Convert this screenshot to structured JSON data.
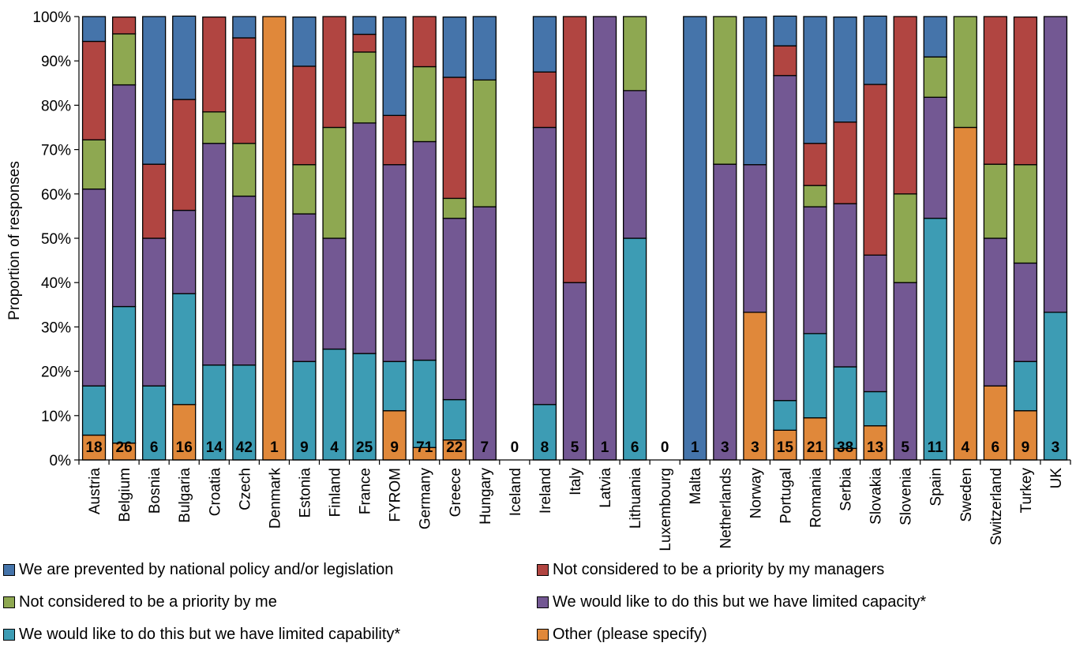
{
  "chart_data": {
    "type": "bar",
    "stacked": true,
    "normalized": true,
    "title": "",
    "xlabel": "",
    "ylabel": "Proportion of responses",
    "ylim": [
      0,
      100
    ],
    "yticks": [
      "0%",
      "10%",
      "20%",
      "30%",
      "40%",
      "50%",
      "60%",
      "70%",
      "80%",
      "90%",
      "100%"
    ],
    "grid": false,
    "legend_position": "bottom",
    "categories": [
      "Austria",
      "Belgium",
      "Bosnia",
      "Bulgaria",
      "Croatia",
      "Czech",
      "Denmark",
      "Estonia",
      "Finland",
      "France",
      "FYROM",
      "Germany",
      "Greece",
      "Hungary",
      "Iceland",
      "Ireland",
      "Italy",
      "Latvia",
      "Lithuania",
      "Luxembourg",
      "Malta",
      "Netherlands",
      "Norway",
      "Portugal",
      "Romania",
      "Serbia",
      "Slovakia",
      "Slovenia",
      "Spain",
      "Sweden",
      "Switzerland",
      "Turkey",
      "UK"
    ],
    "n_labels": [
      "18",
      "26",
      "6",
      "16",
      "14",
      "42",
      "1",
      "9",
      "4",
      "25",
      "9",
      "71",
      "22",
      "7",
      "0",
      "8",
      "5",
      "1",
      "6",
      "0",
      "1",
      "3",
      "3",
      "15",
      "21",
      "38",
      "13",
      "5",
      "11",
      "4",
      "6",
      "9",
      "3"
    ],
    "series": [
      {
        "name": "Other (please specify)",
        "color": "#E0883A",
        "values": [
          5.6,
          3.8,
          0,
          12.5,
          0,
          0,
          100,
          0,
          0,
          0,
          11.1,
          2.8,
          4.5,
          0,
          0,
          0,
          0,
          0,
          0,
          0,
          0,
          0,
          33.3,
          6.7,
          9.5,
          2.6,
          7.7,
          0,
          0,
          75,
          16.7,
          11.1,
          0
        ]
      },
      {
        "name": "We would like to do this but we have limited capability*",
        "color": "#3D9CB4",
        "values": [
          11.1,
          30.8,
          16.7,
          25,
          21.4,
          21.4,
          0,
          22.2,
          25,
          24,
          11.1,
          19.7,
          9.1,
          0,
          0,
          12.5,
          0,
          0,
          50,
          0,
          0,
          0,
          0,
          6.7,
          19,
          18.4,
          7.7,
          0,
          54.5,
          0,
          0,
          11.1,
          33.3
        ]
      },
      {
        "name": "We would like to do this but we have limited capacity*",
        "color": "#735893",
        "values": [
          44.4,
          50,
          33.3,
          18.8,
          50,
          38.1,
          0,
          33.3,
          25,
          52,
          44.4,
          49.3,
          40.9,
          57.1,
          0,
          62.5,
          40,
          100,
          33.3,
          0,
          0,
          66.7,
          33.3,
          73.3,
          28.6,
          36.8,
          30.8,
          40,
          27.3,
          0,
          33.3,
          22.2,
          66.7
        ]
      },
      {
        "name": "Not considered to be a priority by me",
        "color": "#8EA851",
        "values": [
          11.1,
          11.5,
          0,
          0,
          7.1,
          11.9,
          0,
          11.1,
          25,
          16,
          0,
          16.9,
          4.5,
          28.6,
          0,
          0,
          0,
          0,
          16.7,
          0,
          0,
          33.3,
          0,
          0,
          4.8,
          0,
          0,
          20,
          9.1,
          25,
          16.7,
          22.2,
          0
        ]
      },
      {
        "name": "Not considered to be a priority by my managers",
        "color": "#B14541",
        "values": [
          22.2,
          3.8,
          16.7,
          25,
          21.4,
          23.8,
          0,
          22.2,
          25,
          4,
          11.1,
          11.3,
          27.3,
          0,
          0,
          12.5,
          60,
          0,
          0,
          0,
          0,
          0,
          0,
          6.7,
          9.5,
          18.4,
          38.5,
          40,
          0,
          0,
          33.3,
          33.3,
          0
        ]
      },
      {
        "name": "We are prevented by national policy and/or legislation",
        "color": "#4574AA",
        "values": [
          5.6,
          0,
          33.3,
          18.8,
          0,
          4.8,
          0,
          11.1,
          0,
          4,
          22.2,
          0,
          13.6,
          14.3,
          0,
          12.5,
          0,
          0,
          0,
          0,
          100,
          0,
          33.3,
          6.7,
          28.6,
          23.7,
          15.4,
          0,
          9.1,
          0,
          0,
          0,
          0
        ]
      }
    ]
  },
  "legend": [
    {
      "label": "We are prevented by national policy and/or legislation",
      "color": "#4574AA"
    },
    {
      "label": "Not considered to be a priority by my managers",
      "color": "#B14541"
    },
    {
      "label": "Not considered to be a priority by me",
      "color": "#8EA851"
    },
    {
      "label": "We would like to do this but we have limited capacity*",
      "color": "#735893"
    },
    {
      "label": "We would like to do this but we have limited capability*",
      "color": "#3D9CB4"
    },
    {
      "label": "Other (please specify)",
      "color": "#E0883A"
    }
  ]
}
